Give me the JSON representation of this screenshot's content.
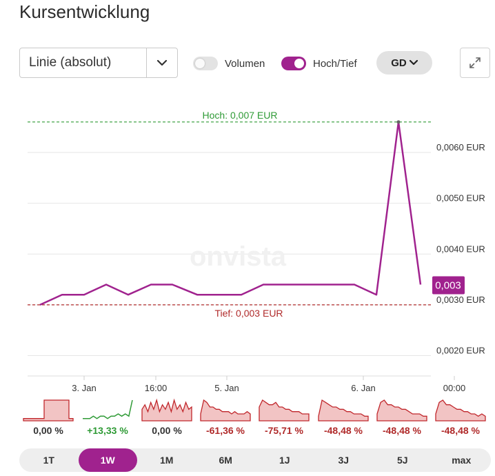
{
  "header": {
    "title": "Kursentwicklung"
  },
  "controls": {
    "chart_type": "Linie (absolut)",
    "volume_label": "Volumen",
    "volume_on": false,
    "highlow_label": "Hoch/Tief",
    "highlow_on": true,
    "exchange": "GD"
  },
  "colors": {
    "accent": "#a0228e",
    "high": "#2e9a35",
    "low": "#b02a2a"
  },
  "chart_data": {
    "type": "line",
    "x": [
      "2 Jan",
      "2 Jan",
      "3 Jan",
      "3 Jan",
      "3 Jan",
      "3 Jan",
      "3 Jan 16:00",
      "3 Jan",
      "3 Jan",
      "4 Jan",
      "5 Jan",
      "5 Jan",
      "5 Jan",
      "5 Jan",
      "6 Jan",
      "6 Jan",
      "6 Jan",
      "7 Jan"
    ],
    "values": [
      0.003,
      0.0032,
      0.0032,
      0.0034,
      0.0032,
      0.0034,
      0.0034,
      0.0032,
      0.0032,
      0.0032,
      0.0034,
      0.0034,
      0.0034,
      0.0034,
      0.0034,
      0.0032,
      0.0066,
      0.0034
    ],
    "ylim": [
      0.0016,
      0.0071
    ],
    "ytick_values": [
      0.006,
      0.005,
      0.004,
      0.003,
      0.002
    ],
    "ytick_labels": [
      "0,0060 EUR",
      "0,0050 EUR",
      "0,0040 EUR",
      "0,0030 EUR",
      "0,0020 EUR"
    ],
    "xtick_labels": [
      "3. Jan",
      "16:00",
      "5. Jan",
      "6. Jan",
      "00:00"
    ],
    "high": {
      "value": 0.0066,
      "label": "Hoch: 0,007 EUR"
    },
    "low": {
      "value": 0.003,
      "label": "Tief: 0,003 EUR"
    },
    "last_label": "0,003",
    "watermark": "onvista",
    "grid": true
  },
  "mini_charts": [
    {
      "pct": "0,00 %",
      "trend": "neu",
      "kind": "block",
      "values": [
        1,
        1,
        1,
        1,
        1,
        9,
        9,
        9,
        9,
        9,
        9,
        1,
        1
      ]
    },
    {
      "pct": "+13,33 %",
      "trend": "pos",
      "kind": "line",
      "values": [
        1,
        1,
        1,
        2,
        1,
        2,
        2,
        1,
        2,
        2,
        3,
        2,
        3,
        2,
        9
      ]
    },
    {
      "pct": "0,00 %",
      "trend": "neu",
      "kind": "area",
      "values": [
        5,
        7,
        4,
        8,
        5,
        9,
        4,
        7,
        5,
        8,
        4,
        9,
        5,
        7,
        4,
        8,
        5,
        6
      ]
    },
    {
      "pct": "-61,36 %",
      "trend": "neg",
      "kind": "area",
      "values": [
        3,
        9,
        8,
        6,
        6,
        5,
        5,
        4,
        4,
        4,
        3,
        4,
        3,
        3,
        3,
        4,
        3
      ]
    },
    {
      "pct": "-75,71 %",
      "trend": "neg",
      "kind": "area",
      "values": [
        6,
        9,
        8,
        7,
        7,
        8,
        6,
        6,
        5,
        5,
        4,
        4,
        4,
        3,
        3,
        3
      ]
    },
    {
      "pct": "-48,48 %",
      "trend": "neg",
      "kind": "area",
      "values": [
        2,
        9,
        8,
        7,
        6,
        6,
        5,
        5,
        4,
        4,
        3,
        3,
        3,
        2,
        2
      ]
    },
    {
      "pct": "-48,48 %",
      "trend": "neg",
      "kind": "area",
      "values": [
        3,
        8,
        9,
        7,
        7,
        6,
        6,
        5,
        5,
        4,
        3,
        3,
        3,
        2,
        2
      ]
    },
    {
      "pct": "-48,48 %",
      "trend": "neg",
      "kind": "area",
      "values": [
        3,
        8,
        9,
        7,
        7,
        6,
        5,
        5,
        4,
        4,
        3,
        3,
        2,
        3,
        2
      ]
    }
  ],
  "periods": [
    {
      "label": "1T",
      "active": false
    },
    {
      "label": "1W",
      "active": true
    },
    {
      "label": "1M",
      "active": false
    },
    {
      "label": "6M",
      "active": false
    },
    {
      "label": "1J",
      "active": false
    },
    {
      "label": "3J",
      "active": false
    },
    {
      "label": "5J",
      "active": false
    },
    {
      "label": "max",
      "active": false
    }
  ]
}
